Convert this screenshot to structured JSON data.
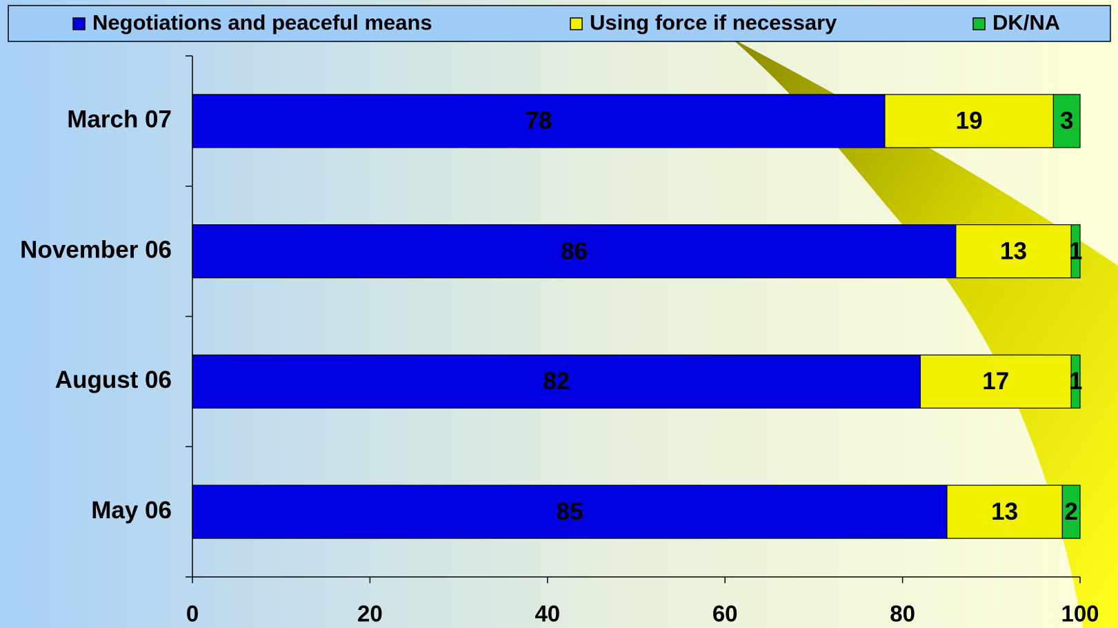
{
  "chart_data": {
    "type": "stacked_barh",
    "categories": [
      "March 07",
      "November 06",
      "August 06",
      "May 06"
    ],
    "series": [
      {
        "name": "Negotiations and peaceful means",
        "color": "#0000e0",
        "values": [
          78,
          86,
          82,
          85
        ]
      },
      {
        "name": "Using force if necessary",
        "color": "#f0f000",
        "values": [
          19,
          13,
          17,
          13
        ]
      },
      {
        "name": "DK/NA",
        "color": "#10c030",
        "values": [
          3,
          1,
          1,
          2
        ]
      }
    ],
    "xlim": [
      0,
      100
    ],
    "xticks": [
      0,
      20,
      40,
      60,
      80,
      100
    ],
    "legend": "top"
  }
}
